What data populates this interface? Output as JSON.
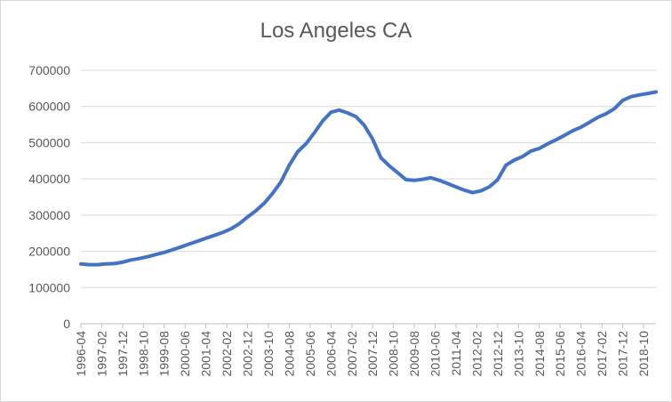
{
  "chart_data": {
    "type": "line",
    "title": "Los Angeles CA",
    "xlabel": "",
    "ylabel": "",
    "ylim": [
      0,
      700000
    ],
    "yticks": [
      "700000",
      "600000",
      "500000",
      "400000",
      "300000",
      "200000",
      "100000",
      "0"
    ],
    "xticks": [
      "1996-04",
      "1997-02",
      "1997-12",
      "1998-10",
      "1999-08",
      "2000-06",
      "2001-04",
      "2002-02",
      "2002-12",
      "2003-10",
      "2004-08",
      "2005-06",
      "2006-04",
      "2007-02",
      "2007-12",
      "2008-10",
      "2009-08",
      "2010-06",
      "2011-04",
      "2012-02",
      "2012-12",
      "2013-10",
      "2014-08",
      "2015-06",
      "2016-04",
      "2017-02",
      "2017-12",
      "2018-10"
    ],
    "grid": true,
    "legend": "none",
    "colors": {
      "line": "#4472c4",
      "grid": "#d9d9d9",
      "axis": "#bfbfbf",
      "text": "#595959"
    },
    "series": [
      {
        "x": [
          "1996-04",
          "1996-08",
          "1996-12",
          "1997-04",
          "1997-08",
          "1997-12",
          "1998-04",
          "1998-08",
          "1998-12",
          "1999-04",
          "1999-08",
          "1999-12",
          "2000-04",
          "2000-08",
          "2000-12",
          "2001-04",
          "2001-08",
          "2001-12",
          "2002-04",
          "2002-08",
          "2002-12",
          "2003-04",
          "2003-08",
          "2003-12",
          "2004-04",
          "2004-08",
          "2004-12",
          "2005-04",
          "2005-08",
          "2005-12",
          "2006-04",
          "2006-08",
          "2006-12",
          "2007-04",
          "2007-08",
          "2007-12",
          "2008-04",
          "2008-08",
          "2008-12",
          "2009-04",
          "2009-08",
          "2009-12",
          "2010-04",
          "2010-08",
          "2010-12",
          "2011-04",
          "2011-08",
          "2011-12",
          "2012-04",
          "2012-08",
          "2012-12",
          "2013-04",
          "2013-08",
          "2013-12",
          "2014-04",
          "2014-08",
          "2014-12",
          "2015-04",
          "2015-08",
          "2015-12",
          "2016-04",
          "2016-08",
          "2016-12",
          "2017-04",
          "2017-08",
          "2017-12",
          "2018-04",
          "2018-08",
          "2018-12",
          "2019-04"
        ],
        "values": [
          165000,
          163000,
          163000,
          165000,
          166000,
          170000,
          176000,
          180000,
          185000,
          191000,
          197000,
          204000,
          212000,
          220000,
          228000,
          236000,
          244000,
          252000,
          262000,
          276000,
          295000,
          312000,
          333000,
          360000,
          392000,
          438000,
          475000,
          497000,
          527000,
          560000,
          584000,
          590000,
          582000,
          572000,
          548000,
          510000,
          458000,
          436000,
          417000,
          398000,
          396000,
          399000,
          403000,
          396000,
          387000,
          378000,
          369000,
          362000,
          367000,
          378000,
          398000,
          438000,
          452000,
          462000,
          477000,
          484000,
          497000,
          508000,
          520000,
          533000,
          543000,
          556000,
          570000,
          580000,
          594000,
          617000,
          627000,
          632000,
          636000,
          640000
        ]
      }
    ]
  }
}
